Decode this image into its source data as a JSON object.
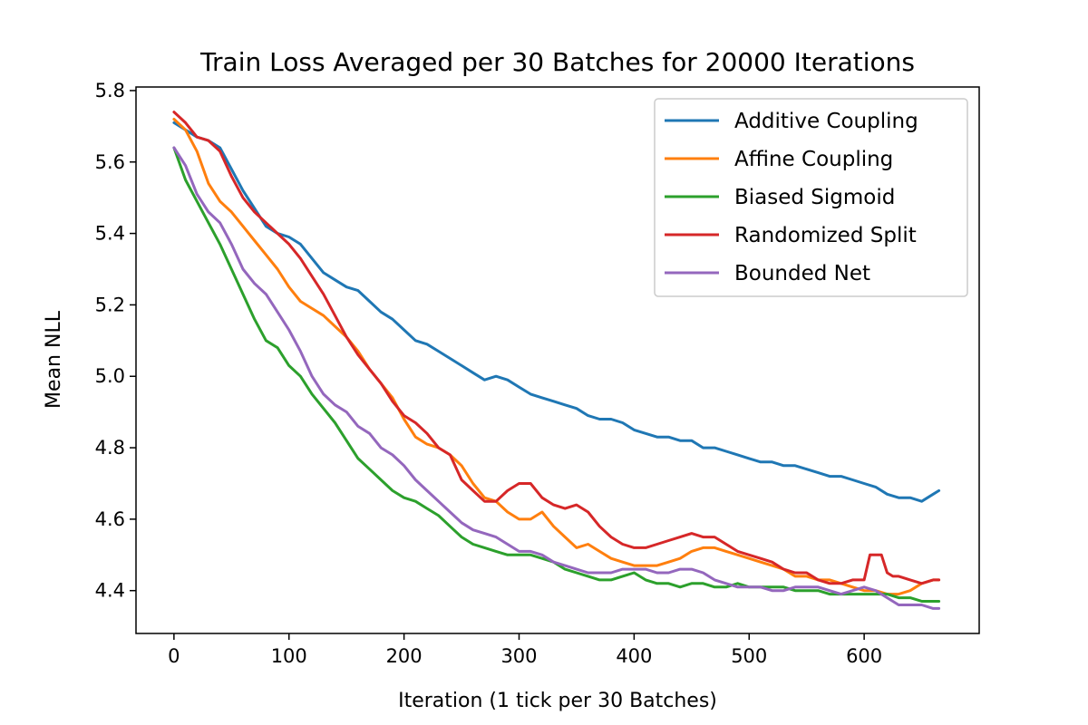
{
  "chart_data": {
    "type": "line",
    "title": "Train Loss Averaged per 30 Batches for 20000 Iterations",
    "xlabel": "Iteration (1 tick per 30 Batches)",
    "ylabel": "Mean NLL",
    "xlim": [
      -33,
      700
    ],
    "ylim": [
      4.28,
      5.81
    ],
    "xticks": [
      0,
      100,
      200,
      300,
      400,
      500,
      600
    ],
    "yticks": [
      4.4,
      4.6,
      4.8,
      5.0,
      5.2,
      5.4,
      5.6,
      5.8
    ],
    "xtick_labels": [
      "0",
      "100",
      "200",
      "300",
      "400",
      "500",
      "600"
    ],
    "ytick_labels": [
      "4.4",
      "4.6",
      "4.8",
      "5.0",
      "5.2",
      "5.4",
      "5.6",
      "5.8"
    ],
    "grid": false,
    "legend_position": "top-right",
    "series": [
      {
        "name": "Additive Coupling",
        "color": "#1f77b4",
        "x": [
          0,
          10,
          20,
          30,
          40,
          50,
          60,
          70,
          80,
          90,
          100,
          110,
          120,
          130,
          140,
          150,
          160,
          170,
          180,
          190,
          200,
          210,
          220,
          230,
          240,
          250,
          260,
          270,
          280,
          290,
          300,
          310,
          320,
          330,
          340,
          350,
          360,
          370,
          380,
          390,
          400,
          410,
          420,
          430,
          440,
          450,
          460,
          470,
          480,
          490,
          500,
          510,
          520,
          530,
          540,
          550,
          560,
          570,
          580,
          590,
          600,
          610,
          620,
          630,
          640,
          650,
          660,
          665
        ],
        "y": [
          5.71,
          5.69,
          5.67,
          5.66,
          5.64,
          5.58,
          5.52,
          5.47,
          5.42,
          5.4,
          5.39,
          5.37,
          5.33,
          5.29,
          5.27,
          5.25,
          5.24,
          5.21,
          5.18,
          5.16,
          5.13,
          5.1,
          5.09,
          5.07,
          5.05,
          5.03,
          5.01,
          4.99,
          5.0,
          4.99,
          4.97,
          4.95,
          4.94,
          4.93,
          4.92,
          4.91,
          4.89,
          4.88,
          4.88,
          4.87,
          4.85,
          4.84,
          4.83,
          4.83,
          4.82,
          4.82,
          4.8,
          4.8,
          4.79,
          4.78,
          4.77,
          4.76,
          4.76,
          4.75,
          4.75,
          4.74,
          4.73,
          4.72,
          4.72,
          4.71,
          4.7,
          4.69,
          4.67,
          4.66,
          4.66,
          4.65,
          4.67,
          4.68
        ]
      },
      {
        "name": "Affine Coupling",
        "color": "#ff7f0e",
        "x": [
          0,
          10,
          20,
          30,
          40,
          50,
          60,
          70,
          80,
          90,
          100,
          110,
          120,
          130,
          140,
          150,
          160,
          170,
          180,
          190,
          200,
          210,
          220,
          230,
          240,
          250,
          260,
          270,
          280,
          290,
          300,
          310,
          320,
          330,
          340,
          350,
          360,
          370,
          380,
          390,
          400,
          410,
          420,
          430,
          440,
          450,
          460,
          470,
          480,
          490,
          500,
          510,
          520,
          530,
          540,
          550,
          560,
          570,
          580,
          590,
          600,
          610,
          620,
          630,
          640,
          650,
          660,
          665
        ],
        "y": [
          5.72,
          5.69,
          5.63,
          5.54,
          5.49,
          5.46,
          5.42,
          5.38,
          5.34,
          5.3,
          5.25,
          5.21,
          5.19,
          5.17,
          5.14,
          5.11,
          5.07,
          5.02,
          4.98,
          4.94,
          4.88,
          4.83,
          4.81,
          4.8,
          4.78,
          4.75,
          4.7,
          4.66,
          4.65,
          4.62,
          4.6,
          4.6,
          4.62,
          4.58,
          4.55,
          4.52,
          4.53,
          4.51,
          4.49,
          4.48,
          4.47,
          4.47,
          4.47,
          4.48,
          4.49,
          4.51,
          4.52,
          4.52,
          4.51,
          4.5,
          4.49,
          4.48,
          4.47,
          4.46,
          4.44,
          4.44,
          4.43,
          4.43,
          4.42,
          4.41,
          4.4,
          4.4,
          4.39,
          4.39,
          4.4,
          4.42,
          4.43,
          4.43
        ]
      },
      {
        "name": "Biased Sigmoid",
        "color": "#2ca02c",
        "x": [
          0,
          10,
          20,
          30,
          40,
          50,
          60,
          70,
          80,
          90,
          100,
          110,
          120,
          130,
          140,
          150,
          160,
          170,
          180,
          190,
          200,
          210,
          220,
          230,
          240,
          250,
          260,
          270,
          280,
          290,
          300,
          310,
          320,
          330,
          340,
          350,
          360,
          370,
          380,
          390,
          400,
          410,
          420,
          430,
          440,
          450,
          460,
          470,
          480,
          490,
          500,
          510,
          520,
          530,
          540,
          550,
          560,
          570,
          580,
          590,
          600,
          610,
          620,
          630,
          640,
          650,
          660,
          665
        ],
        "y": [
          5.64,
          5.55,
          5.49,
          5.43,
          5.37,
          5.3,
          5.23,
          5.16,
          5.1,
          5.08,
          5.03,
          5.0,
          4.95,
          4.91,
          4.87,
          4.82,
          4.77,
          4.74,
          4.71,
          4.68,
          4.66,
          4.65,
          4.63,
          4.61,
          4.58,
          4.55,
          4.53,
          4.52,
          4.51,
          4.5,
          4.5,
          4.5,
          4.49,
          4.48,
          4.46,
          4.45,
          4.44,
          4.43,
          4.43,
          4.44,
          4.45,
          4.43,
          4.42,
          4.42,
          4.41,
          4.42,
          4.42,
          4.41,
          4.41,
          4.42,
          4.41,
          4.41,
          4.41,
          4.41,
          4.4,
          4.4,
          4.4,
          4.39,
          4.39,
          4.39,
          4.39,
          4.39,
          4.39,
          4.38,
          4.38,
          4.37,
          4.37,
          4.37
        ]
      },
      {
        "name": "Randomized Split",
        "color": "#d62728",
        "x": [
          0,
          10,
          20,
          30,
          40,
          50,
          60,
          70,
          80,
          90,
          100,
          110,
          120,
          130,
          140,
          150,
          160,
          170,
          180,
          190,
          200,
          210,
          220,
          230,
          240,
          250,
          260,
          270,
          280,
          290,
          300,
          310,
          320,
          330,
          340,
          350,
          360,
          370,
          380,
          390,
          400,
          410,
          420,
          430,
          440,
          450,
          460,
          470,
          480,
          490,
          500,
          510,
          520,
          530,
          540,
          550,
          560,
          570,
          580,
          590,
          600,
          605,
          610,
          615,
          620,
          625,
          630,
          640,
          650,
          660,
          665
        ],
        "y": [
          5.74,
          5.71,
          5.67,
          5.66,
          5.63,
          5.56,
          5.5,
          5.46,
          5.43,
          5.4,
          5.37,
          5.33,
          5.28,
          5.23,
          5.17,
          5.11,
          5.06,
          5.02,
          4.98,
          4.93,
          4.89,
          4.87,
          4.84,
          4.8,
          4.78,
          4.71,
          4.68,
          4.65,
          4.65,
          4.68,
          4.7,
          4.7,
          4.66,
          4.64,
          4.63,
          4.64,
          4.62,
          4.58,
          4.55,
          4.53,
          4.52,
          4.52,
          4.53,
          4.54,
          4.55,
          4.56,
          4.55,
          4.55,
          4.53,
          4.51,
          4.5,
          4.49,
          4.48,
          4.46,
          4.45,
          4.45,
          4.43,
          4.42,
          4.42,
          4.43,
          4.43,
          4.5,
          4.5,
          4.5,
          4.45,
          4.44,
          4.44,
          4.43,
          4.42,
          4.43,
          4.43
        ]
      },
      {
        "name": "Bounded Net",
        "color": "#9467bd",
        "x": [
          0,
          10,
          20,
          30,
          40,
          50,
          60,
          70,
          80,
          90,
          100,
          110,
          120,
          130,
          140,
          150,
          160,
          170,
          180,
          190,
          200,
          210,
          220,
          230,
          240,
          250,
          260,
          270,
          280,
          290,
          300,
          310,
          320,
          330,
          340,
          350,
          360,
          370,
          380,
          390,
          400,
          410,
          420,
          430,
          440,
          450,
          460,
          470,
          480,
          490,
          500,
          510,
          520,
          530,
          540,
          550,
          560,
          570,
          580,
          590,
          600,
          610,
          620,
          630,
          640,
          650,
          660,
          665
        ],
        "y": [
          5.64,
          5.59,
          5.51,
          5.46,
          5.43,
          5.37,
          5.3,
          5.26,
          5.23,
          5.18,
          5.13,
          5.07,
          5.0,
          4.95,
          4.92,
          4.9,
          4.86,
          4.84,
          4.8,
          4.78,
          4.75,
          4.71,
          4.68,
          4.65,
          4.62,
          4.59,
          4.57,
          4.56,
          4.55,
          4.53,
          4.51,
          4.51,
          4.5,
          4.48,
          4.47,
          4.46,
          4.45,
          4.45,
          4.45,
          4.46,
          4.46,
          4.46,
          4.45,
          4.45,
          4.46,
          4.46,
          4.45,
          4.43,
          4.42,
          4.41,
          4.41,
          4.41,
          4.4,
          4.4,
          4.41,
          4.41,
          4.41,
          4.4,
          4.39,
          4.4,
          4.41,
          4.4,
          4.38,
          4.36,
          4.36,
          4.36,
          4.35,
          4.35
        ]
      }
    ]
  }
}
